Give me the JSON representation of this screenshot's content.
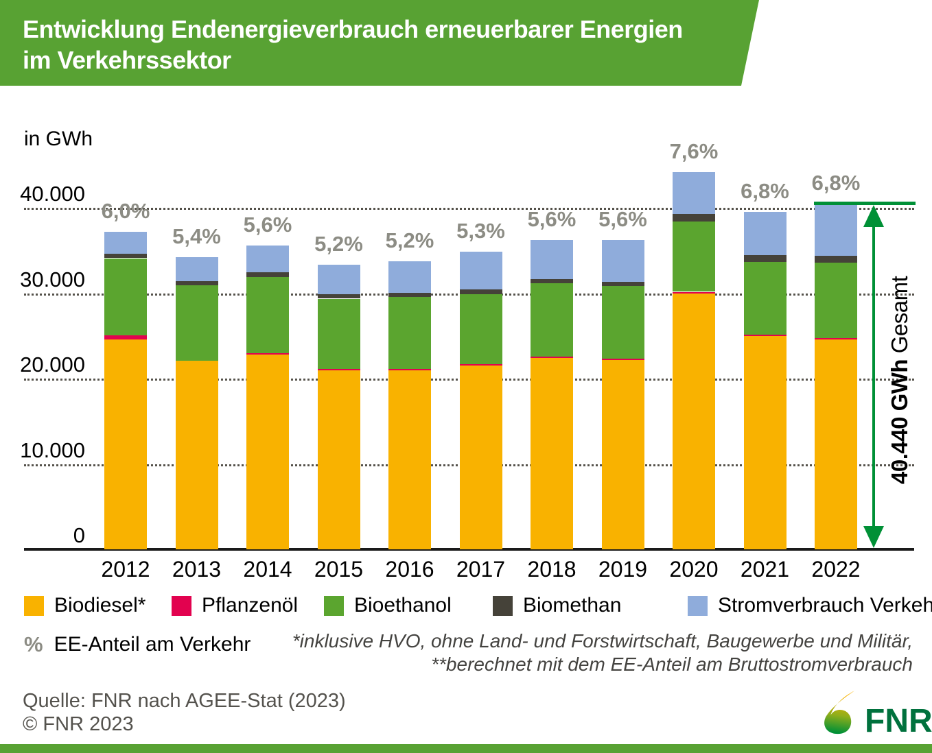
{
  "header": {
    "title_line1": "Entwicklung Endenergieverbrauch erneuerbarer Energien",
    "title_line2": "im Verkehrssektor"
  },
  "axis": {
    "unit_label": "in GWh",
    "y_ticks": [
      {
        "label": "40.000",
        "value": 40000
      },
      {
        "label": "30.000",
        "value": 30000
      },
      {
        "label": "20.000",
        "value": 20000
      },
      {
        "label": "10.000",
        "value": 10000
      },
      {
        "label": "0",
        "value": 0
      }
    ]
  },
  "annotation": {
    "total_bold": "40.440 GWh",
    "total_regular": "Gesamt"
  },
  "legend": {
    "items": [
      {
        "label": "Biodiesel*",
        "color": "#f9b200"
      },
      {
        "label": "Pflanzenöl",
        "color": "#e2024f"
      },
      {
        "label": "Bioethanol",
        "color": "#5ba52f"
      },
      {
        "label": "Biomethan",
        "color": "#454239"
      },
      {
        "label": "Stromverbrauch Verkehr**",
        "color": "#8facdb"
      }
    ],
    "row2_symbol": "%",
    "row2_label": "EE-Anteil am Verkehr"
  },
  "footnotes": [
    "*inklusive HVO, ohne Land- und Forstwirtschaft, Baugewerbe und Militär,",
    "**berechnet mit dem EE-Anteil am Bruttostromverbrauch"
  ],
  "source": {
    "line1": "Quelle: FNR nach AGEE-Stat (2023)",
    "line2": "© FNR 2023"
  },
  "logo": {
    "text": "FNR"
  },
  "colors": {
    "header_green": "#58a233",
    "arrow_green": "#009036",
    "logo_green": "#00713d",
    "logo_yellow": "#f9b200",
    "pct_gray": "#8c8c84",
    "grid_dot": "#55524b",
    "baseline_black": "#1a1a1a",
    "source_gray": "#54524d"
  },
  "chart_data": {
    "type": "bar",
    "stacked": true,
    "title": "Entwicklung Endenergieverbrauch erneuerbarer Energien im Verkehrssektor",
    "ylabel": "in GWh",
    "ylim": [
      0,
      44500
    ],
    "grid": "horizontal dotted",
    "legend_position": "bottom",
    "categories": [
      "2012",
      "2013",
      "2014",
      "2015",
      "2016",
      "2017",
      "2018",
      "2019",
      "2020",
      "2021",
      "2022"
    ],
    "series": [
      {
        "name": "Biodiesel*",
        "color": "#f9b200",
        "values": [
          24600,
          22100,
          22800,
          21000,
          21000,
          21500,
          22400,
          22200,
          30000,
          25000,
          24600
        ]
      },
      {
        "name": "Pflanzenöl",
        "color": "#e2024f",
        "values": [
          500,
          0,
          100,
          100,
          100,
          100,
          100,
          100,
          150,
          150,
          100
        ]
      },
      {
        "name": "Bioethanol",
        "color": "#5ba52f",
        "values": [
          9000,
          8800,
          8900,
          8200,
          8400,
          8200,
          8600,
          8500,
          8200,
          8500,
          8800
        ]
      },
      {
        "name": "Biomethan",
        "color": "#454239",
        "values": [
          500,
          500,
          600,
          500,
          500,
          600,
          500,
          500,
          900,
          800,
          800
        ]
      },
      {
        "name": "Stromverbrauch Verkehr**",
        "color": "#8facdb",
        "values": [
          2600,
          2800,
          3100,
          3500,
          3700,
          4400,
          4600,
          4900,
          4900,
          5100,
          6140
        ]
      }
    ],
    "percent_labels": [
      "6,0%",
      "5,4%",
      "5,6%",
      "5,2%",
      "5,2%",
      "5,3%",
      "5,6%",
      "5,6%",
      "7,6%",
      "6,8%",
      "6,8%"
    ],
    "totals": [
      37200,
      34200,
      35500,
      33300,
      33700,
      34800,
      36200,
      36200,
      44150,
      39550,
      40440
    ],
    "total_2022_gwh": 40440
  }
}
